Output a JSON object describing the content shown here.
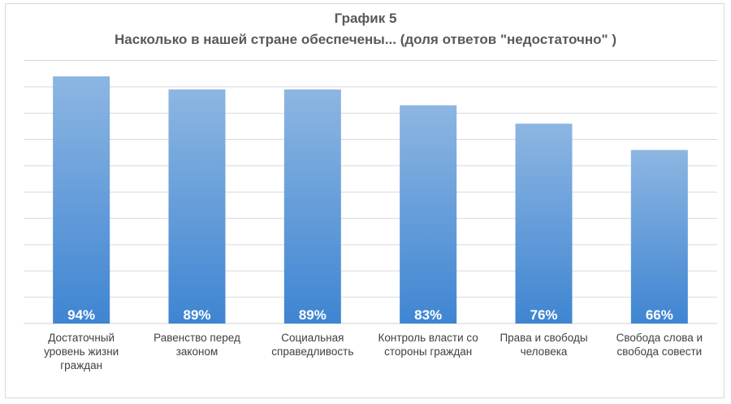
{
  "chart_data": {
    "type": "bar",
    "title": "График 5",
    "subtitle": "Насколько в нашей стране обеспечены... (доля ответов \"недостаточно\" )",
    "categories": [
      "Достаточный\nуровень жизни\nграждан",
      "Равенство перед\nзаконом",
      "Социальная\nсправедливость",
      "Контроль власти со\nстороны граждан",
      "Права и свободы\nчеловека",
      "Свобода слова и\nсвобода совести"
    ],
    "values": [
      94,
      89,
      89,
      83,
      76,
      66
    ],
    "data_labels": [
      "94%",
      "89%",
      "89%",
      "83%",
      "76%",
      "66%"
    ],
    "ylim": [
      0,
      100
    ],
    "grid": true,
    "legend": "none",
    "colors": {
      "bar_top": "#8db6e2",
      "bar_bottom": "#3f85d2",
      "grid": "#d9d9d9",
      "label": "#ffffff"
    }
  }
}
